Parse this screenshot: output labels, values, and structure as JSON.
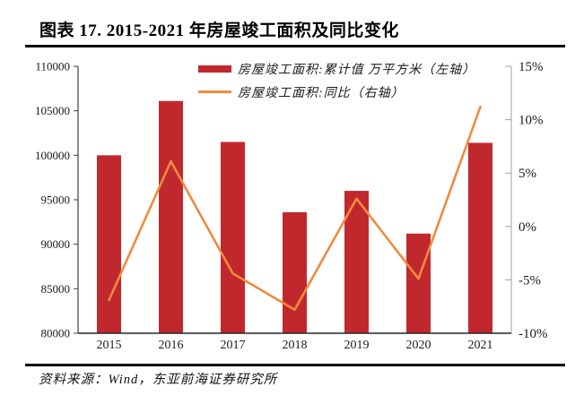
{
  "title": "图表 17. 2015-2021 年房屋竣工面积及同比变化",
  "source": "资料来源：Wind，东亚前海证券研究所",
  "chart_data": {
    "type": "bar",
    "subtype": "bar+line combo, dual axis",
    "categories": [
      "2015",
      "2016",
      "2017",
      "2018",
      "2019",
      "2020",
      "2021"
    ],
    "series": [
      {
        "name": "房屋竣工面积:累计值 万平方米（左轴）",
        "type": "bar",
        "axis": "left",
        "color": "#c1282e",
        "values": [
          100000,
          106100,
          101500,
          93600,
          96000,
          91200,
          101400
        ]
      },
      {
        "name": "房屋竣工面积:同比（右轴）",
        "type": "line",
        "axis": "right",
        "color": "#ef8b3e",
        "values": [
          -6.9,
          6.1,
          -4.4,
          -7.8,
          2.6,
          -4.9,
          11.2
        ]
      }
    ],
    "left_axis": {
      "min": 80000,
      "max": 110000,
      "step": 5000,
      "tick_labels": [
        "110000",
        "105000",
        "100000",
        "95000",
        "90000",
        "85000",
        "80000"
      ]
    },
    "right_axis": {
      "min": -10,
      "max": 15,
      "step": 5,
      "tick_labels": [
        "15%",
        "10%",
        "5%",
        "0%",
        "-5%",
        "-10%"
      ]
    },
    "legend_position": "top-center",
    "grid": false
  }
}
